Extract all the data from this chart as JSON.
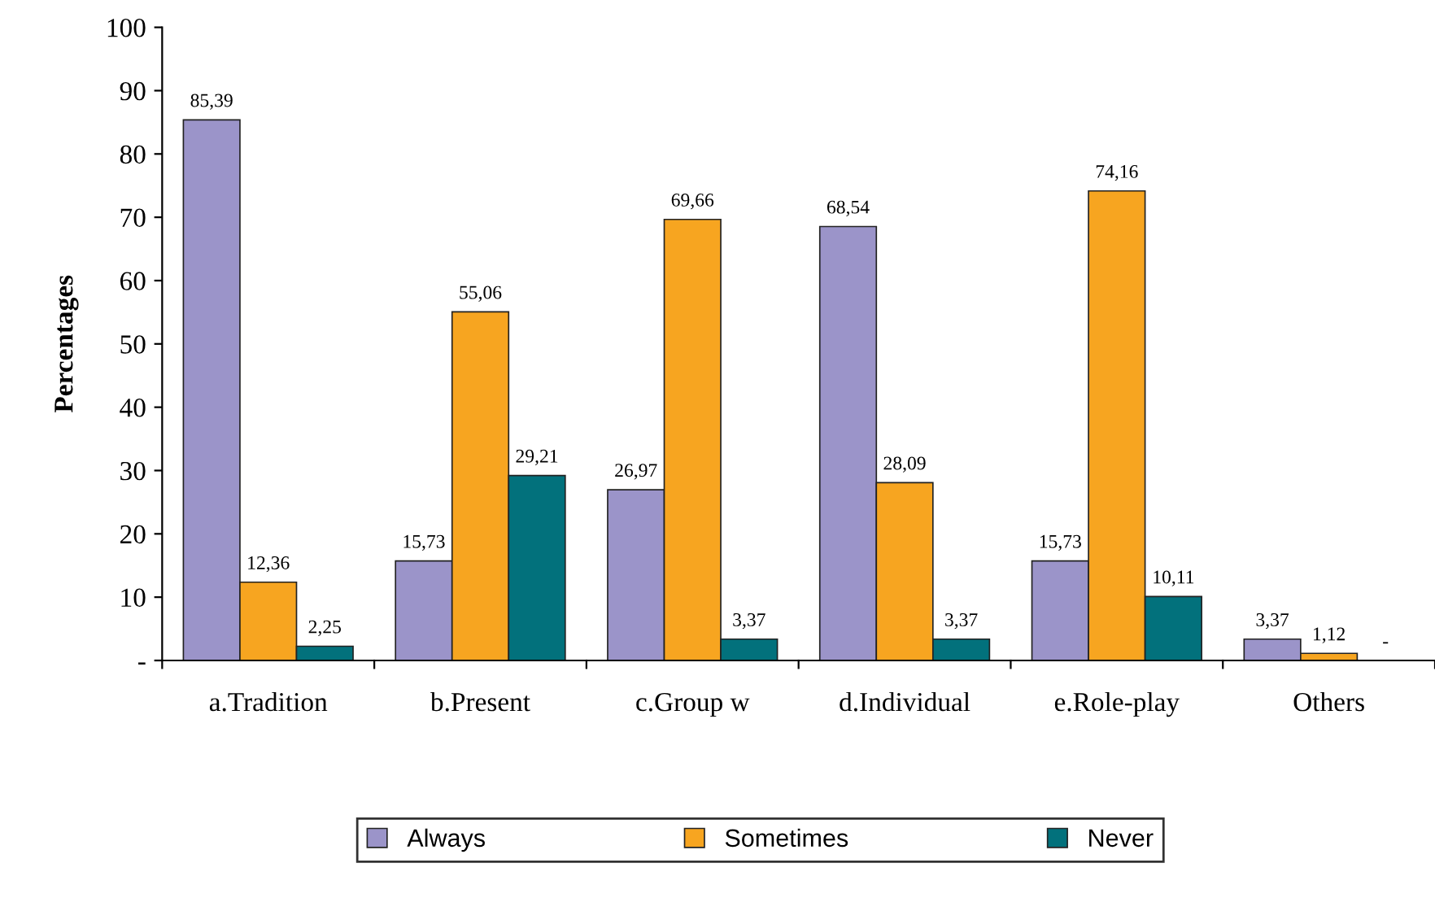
{
  "chart_data": {
    "type": "bar",
    "ylabel": "Percentages",
    "categories": [
      "a.Tradition",
      "b.Present",
      "c.Group w",
      "d.Individual",
      "e.Role-play",
      "Others"
    ],
    "series": [
      {
        "name": "Always",
        "color": "#9b94c9",
        "values": [
          85.39,
          15.73,
          26.97,
          68.54,
          15.73,
          3.37
        ],
        "value_labels": [
          "85,39",
          "15,73",
          "26,97",
          "68,54",
          "15,73",
          "3,37"
        ]
      },
      {
        "name": "Sometimes",
        "color": "#f7a520",
        "values": [
          12.36,
          55.06,
          69.66,
          28.09,
          74.16,
          1.12
        ],
        "value_labels": [
          "12,36",
          "55,06",
          "69,66",
          "28,09",
          "74,16",
          "1,12"
        ]
      },
      {
        "name": "Never",
        "color": "#02717c",
        "values": [
          2.25,
          29.21,
          3.37,
          3.37,
          10.11,
          0
        ],
        "value_labels": [
          "2,25",
          "29,21",
          "3,37",
          "3,37",
          "10,11",
          "-"
        ]
      }
    ],
    "ylim": [
      0,
      100
    ],
    "yticks": [
      {
        "value": 0,
        "label": "-"
      },
      10,
      20,
      30,
      40,
      50,
      60,
      70,
      80,
      90,
      100
    ],
    "grid": false,
    "legend": "bottom"
  }
}
